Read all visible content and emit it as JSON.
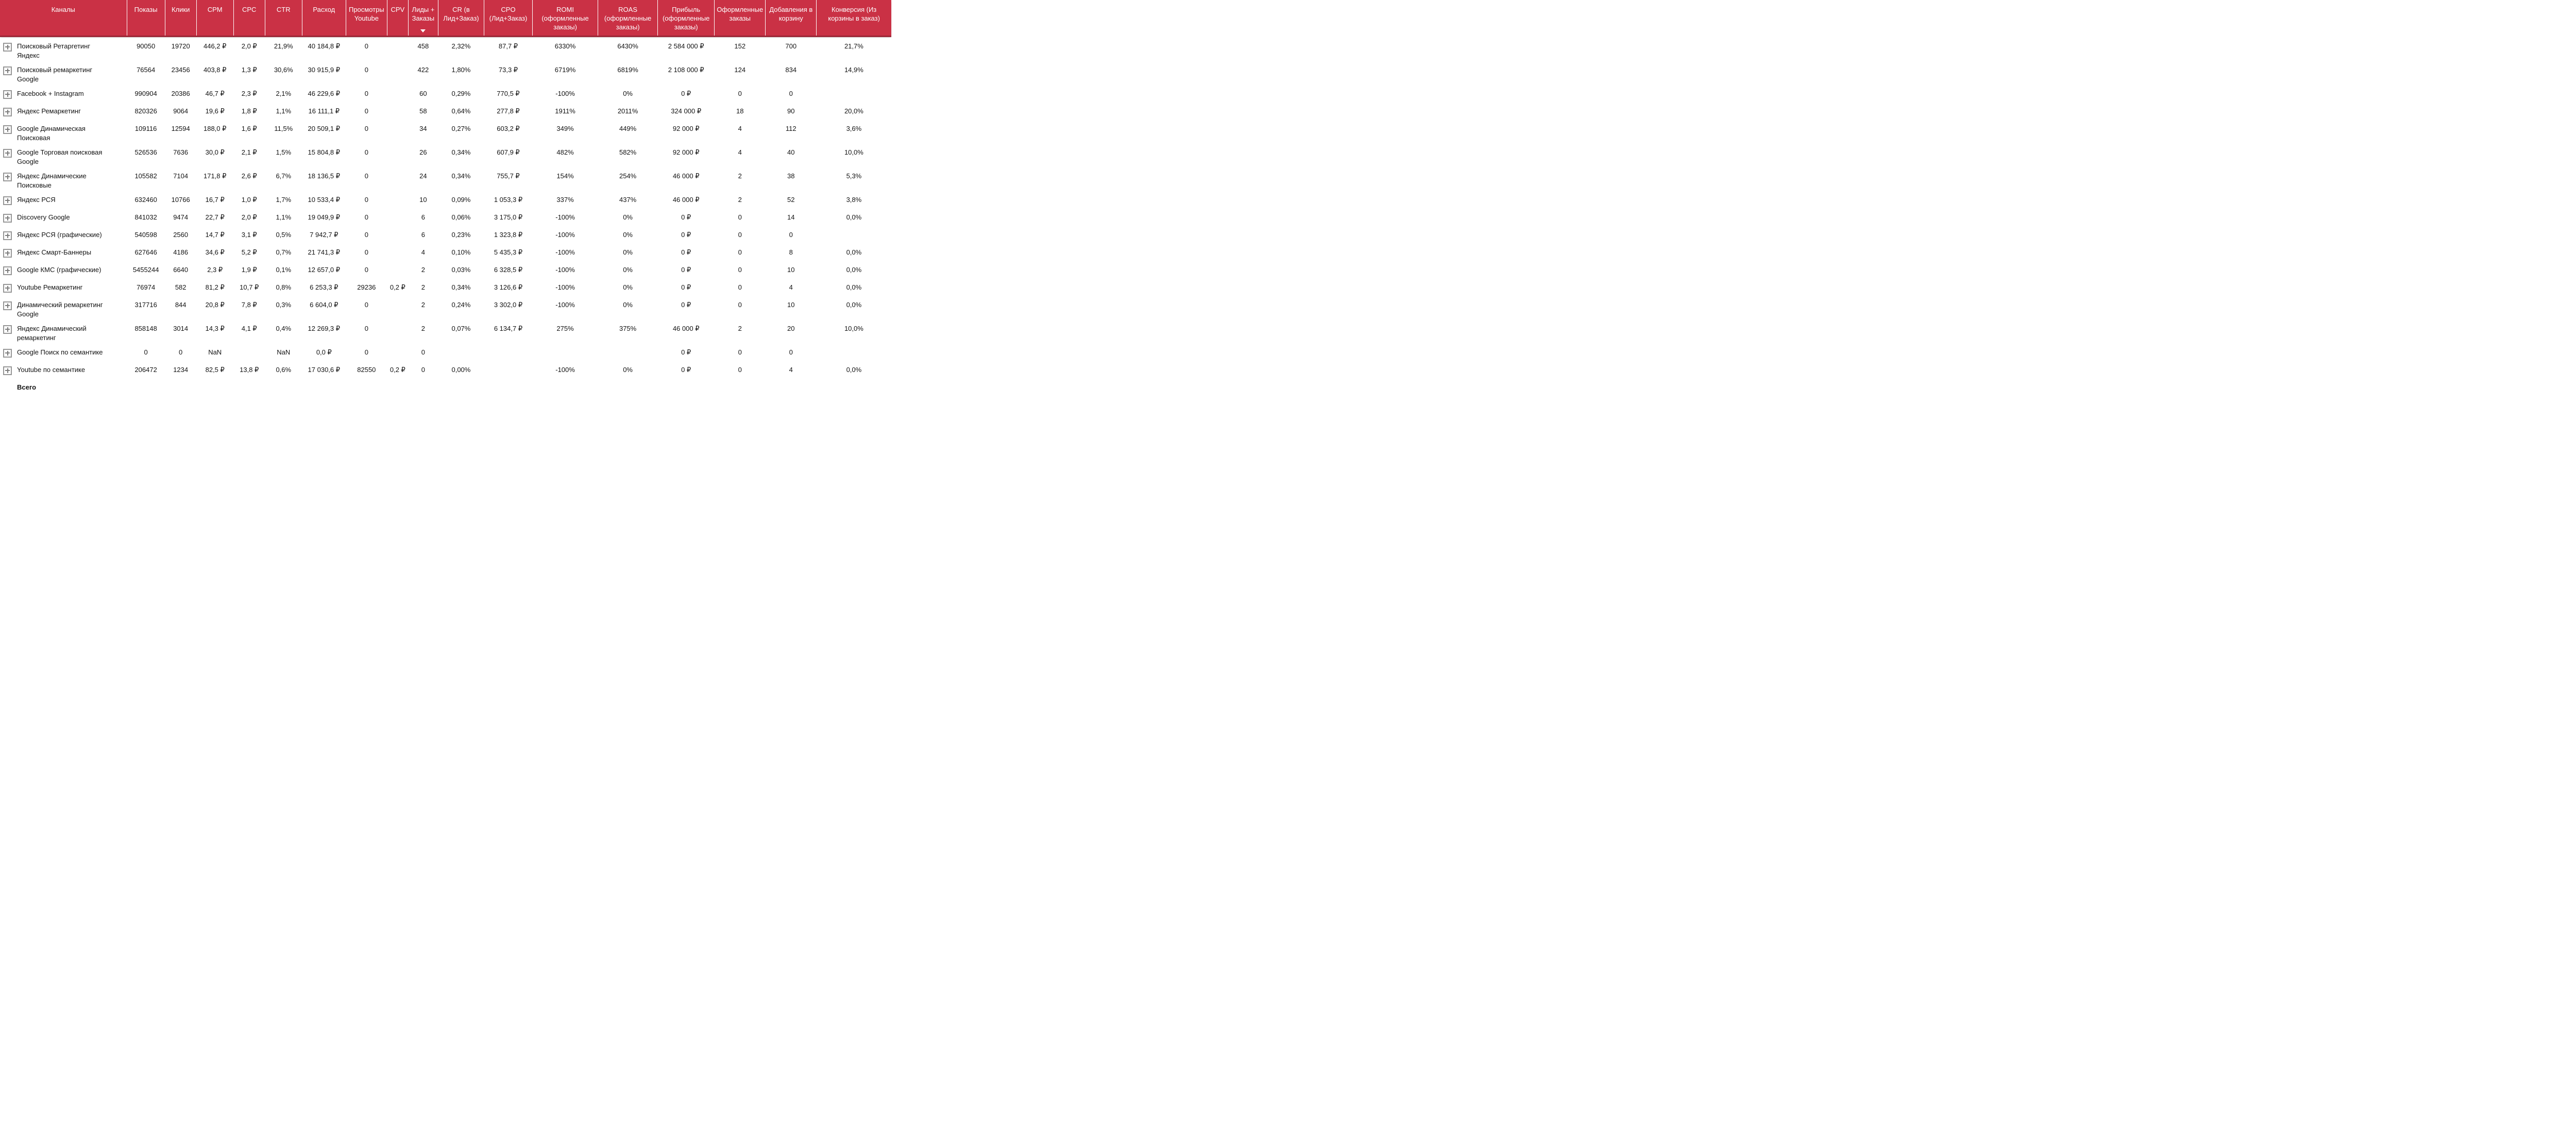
{
  "colors": {
    "header_bg": "#ca3145",
    "header_border": "#9c2838",
    "header_text": "#ffffff",
    "body_text": "#111111",
    "expand_icon_gray": "#979797"
  },
  "table": {
    "sort": {
      "column": "Лиды + Заказы",
      "direction": "desc"
    },
    "columns": [
      {
        "key": "channels",
        "label": "Каналы"
      },
      {
        "key": "impressions",
        "label": "Показы"
      },
      {
        "key": "clicks",
        "label": "Клики"
      },
      {
        "key": "cpm",
        "label": "CPM"
      },
      {
        "key": "cpc",
        "label": "CPC"
      },
      {
        "key": "ctr",
        "label": "CTR"
      },
      {
        "key": "spend",
        "label": "Расход"
      },
      {
        "key": "youtube_views",
        "label": "Просмотры Youtube"
      },
      {
        "key": "cpv",
        "label": "CPV"
      },
      {
        "key": "leads_orders",
        "label": "Лиды + Заказы"
      },
      {
        "key": "cr",
        "label": "CR (в Лид+Заказ)"
      },
      {
        "key": "cpo",
        "label": "CPO (Лид+Заказ)"
      },
      {
        "key": "romi",
        "label": "ROMI (оформленные заказы)"
      },
      {
        "key": "roas",
        "label": "ROAS (оформленные заказы)"
      },
      {
        "key": "profit",
        "label": "Прибыль (оформленные заказы)"
      },
      {
        "key": "orders",
        "label": "Оформленные заказы"
      },
      {
        "key": "cart_adds",
        "label": "Добавления в корзину"
      },
      {
        "key": "cart_conversion",
        "label": "Конверсия (Из корзины в заказ)"
      }
    ],
    "rows": [
      {
        "channel": "Поисковый Ретаргетинг Яндекс",
        "values": [
          "90050",
          "19720",
          "446,2 ₽",
          "2,0 ₽",
          "21,9%",
          "40 184,8 ₽",
          "0",
          "",
          "458",
          "2,32%",
          "87,7 ₽",
          "6330%",
          "6430%",
          "2 584 000 ₽",
          "152",
          "700",
          "21,7%"
        ]
      },
      {
        "channel": "Поисковый ремаркетинг Google",
        "values": [
          "76564",
          "23456",
          "403,8 ₽",
          "1,3 ₽",
          "30,6%",
          "30 915,9 ₽",
          "0",
          "",
          "422",
          "1,80%",
          "73,3 ₽",
          "6719%",
          "6819%",
          "2 108 000 ₽",
          "124",
          "834",
          "14,9%"
        ]
      },
      {
        "channel": "Facebook + Instagram",
        "values": [
          "990904",
          "20386",
          "46,7 ₽",
          "2,3 ₽",
          "2,1%",
          "46 229,6 ₽",
          "0",
          "",
          "60",
          "0,29%",
          "770,5 ₽",
          "-100%",
          "0%",
          "0 ₽",
          "0",
          "0",
          ""
        ]
      },
      {
        "channel": "Яндекс Ремаркетинг",
        "values": [
          "820326",
          "9064",
          "19,6 ₽",
          "1,8 ₽",
          "1,1%",
          "16 111,1 ₽",
          "0",
          "",
          "58",
          "0,64%",
          "277,8 ₽",
          "1911%",
          "2011%",
          "324 000 ₽",
          "18",
          "90",
          "20,0%"
        ]
      },
      {
        "channel": "Google Динамическая Поисковая",
        "values": [
          "109116",
          "12594",
          "188,0 ₽",
          "1,6 ₽",
          "11,5%",
          "20 509,1 ₽",
          "0",
          "",
          "34",
          "0,27%",
          "603,2 ₽",
          "349%",
          "449%",
          "92 000 ₽",
          "4",
          "112",
          "3,6%"
        ]
      },
      {
        "channel": "Google Торговая поисковая Google",
        "values": [
          "526536",
          "7636",
          "30,0 ₽",
          "2,1 ₽",
          "1,5%",
          "15 804,8 ₽",
          "0",
          "",
          "26",
          "0,34%",
          "607,9 ₽",
          "482%",
          "582%",
          "92 000 ₽",
          "4",
          "40",
          "10,0%"
        ]
      },
      {
        "channel": "Яндекс Динамические Поисковые",
        "values": [
          "105582",
          "7104",
          "171,8 ₽",
          "2,6 ₽",
          "6,7%",
          "18 136,5 ₽",
          "0",
          "",
          "24",
          "0,34%",
          "755,7 ₽",
          "154%",
          "254%",
          "46 000 ₽",
          "2",
          "38",
          "5,3%"
        ]
      },
      {
        "channel": "Яндекс РСЯ",
        "values": [
          "632460",
          "10766",
          "16,7 ₽",
          "1,0 ₽",
          "1,7%",
          "10 533,4 ₽",
          "0",
          "",
          "10",
          "0,09%",
          "1 053,3 ₽",
          "337%",
          "437%",
          "46 000 ₽",
          "2",
          "52",
          "3,8%"
        ]
      },
      {
        "channel": "Discovery Google",
        "values": [
          "841032",
          "9474",
          "22,7 ₽",
          "2,0 ₽",
          "1,1%",
          "19 049,9 ₽",
          "0",
          "",
          "6",
          "0,06%",
          "3 175,0 ₽",
          "-100%",
          "0%",
          "0 ₽",
          "0",
          "14",
          "0,0%"
        ]
      },
      {
        "channel": "Яндекс РСЯ (графические)",
        "values": [
          "540598",
          "2560",
          "14,7 ₽",
          "3,1 ₽",
          "0,5%",
          "7 942,7 ₽",
          "0",
          "",
          "6",
          "0,23%",
          "1 323,8 ₽",
          "-100%",
          "0%",
          "0 ₽",
          "0",
          "0",
          ""
        ]
      },
      {
        "channel": "Яндекс Смарт-Баннеры",
        "values": [
          "627646",
          "4186",
          "34,6 ₽",
          "5,2 ₽",
          "0,7%",
          "21 741,3 ₽",
          "0",
          "",
          "4",
          "0,10%",
          "5 435,3 ₽",
          "-100%",
          "0%",
          "0 ₽",
          "0",
          "8",
          "0,0%"
        ]
      },
      {
        "channel": "Google КМС (графические)",
        "values": [
          "5455244",
          "6640",
          "2,3 ₽",
          "1,9 ₽",
          "0,1%",
          "12 657,0 ₽",
          "0",
          "",
          "2",
          "0,03%",
          "6 328,5 ₽",
          "-100%",
          "0%",
          "0 ₽",
          "0",
          "10",
          "0,0%"
        ]
      },
      {
        "channel": "Youtube Ремаркетинг",
        "values": [
          "76974",
          "582",
          "81,2 ₽",
          "10,7 ₽",
          "0,8%",
          "6 253,3 ₽",
          "29236",
          "0,2 ₽",
          "2",
          "0,34%",
          "3 126,6 ₽",
          "-100%",
          "0%",
          "0 ₽",
          "0",
          "4",
          "0,0%"
        ]
      },
      {
        "channel": "Динамический ремаркетинг Google",
        "values": [
          "317716",
          "844",
          "20,8 ₽",
          "7,8 ₽",
          "0,3%",
          "6 604,0 ₽",
          "0",
          "",
          "2",
          "0,24%",
          "3 302,0 ₽",
          "-100%",
          "0%",
          "0 ₽",
          "0",
          "10",
          "0,0%"
        ]
      },
      {
        "channel": "Яндекс Динамический ремаркетинг",
        "values": [
          "858148",
          "3014",
          "14,3 ₽",
          "4,1 ₽",
          "0,4%",
          "12 269,3 ₽",
          "0",
          "",
          "2",
          "0,07%",
          "6 134,7 ₽",
          "275%",
          "375%",
          "46 000 ₽",
          "2",
          "20",
          "10,0%"
        ]
      },
      {
        "channel": "Google Поиск по семантике",
        "values": [
          "0",
          "0",
          "NaN",
          "",
          "NaN",
          "0,0 ₽",
          "0",
          "",
          "0",
          "",
          "",
          "",
          "",
          "0 ₽",
          "0",
          "0",
          ""
        ]
      },
      {
        "channel": "Youtube по семантике",
        "values": [
          "206472",
          "1234",
          "82,5 ₽",
          "13,8 ₽",
          "0,6%",
          "17 030,6 ₽",
          "82550",
          "0,2 ₽",
          "0",
          "0,00%",
          "",
          "-100%",
          "0%",
          "0 ₽",
          "0",
          "4",
          "0,0%"
        ]
      },
      {
        "channel": "Всего",
        "is_total": true,
        "values": [
          "",
          "",
          "",
          "",
          "",
          "",
          "",
          "",
          "",
          "",
          "",
          "",
          "",
          "",
          "",
          "",
          ""
        ]
      }
    ]
  }
}
